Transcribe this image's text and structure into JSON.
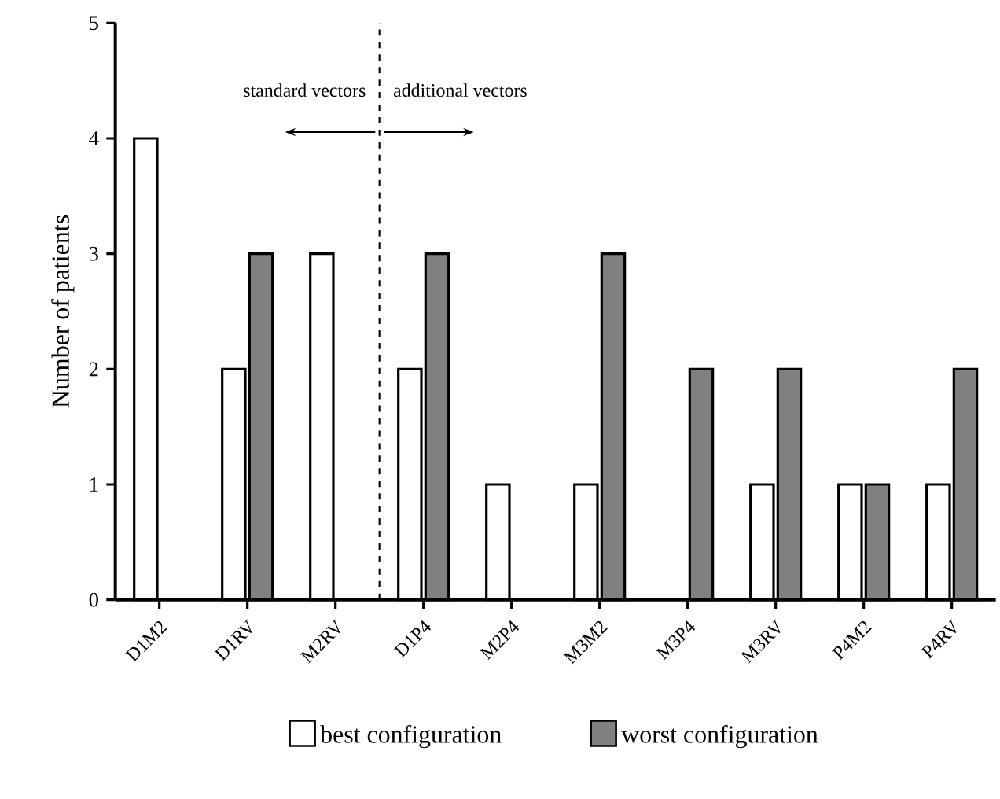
{
  "chart_data": {
    "type": "bar",
    "ylabel": "Number of patients",
    "categories": [
      "D1M2",
      "D1RV",
      "M2RV",
      "D1P4",
      "M2P4",
      "M3M2",
      "M3P4",
      "M3RV",
      "P4M2",
      "P4RV"
    ],
    "series": [
      {
        "name": "best configuration",
        "color": "#ffffff",
        "values": [
          4,
          2,
          3,
          2,
          1,
          1,
          null,
          1,
          1,
          1
        ]
      },
      {
        "name": "worst configuration",
        "color": "#808080",
        "values": [
          null,
          3,
          null,
          3,
          null,
          3,
          2,
          2,
          1,
          2
        ]
      }
    ],
    "ylim": [
      0,
      5
    ],
    "yticks": [
      0,
      1,
      2,
      3,
      4,
      5
    ],
    "grid": false,
    "legend": "bottom",
    "annotations": [
      "standard vectors",
      "additional vectors"
    ]
  }
}
